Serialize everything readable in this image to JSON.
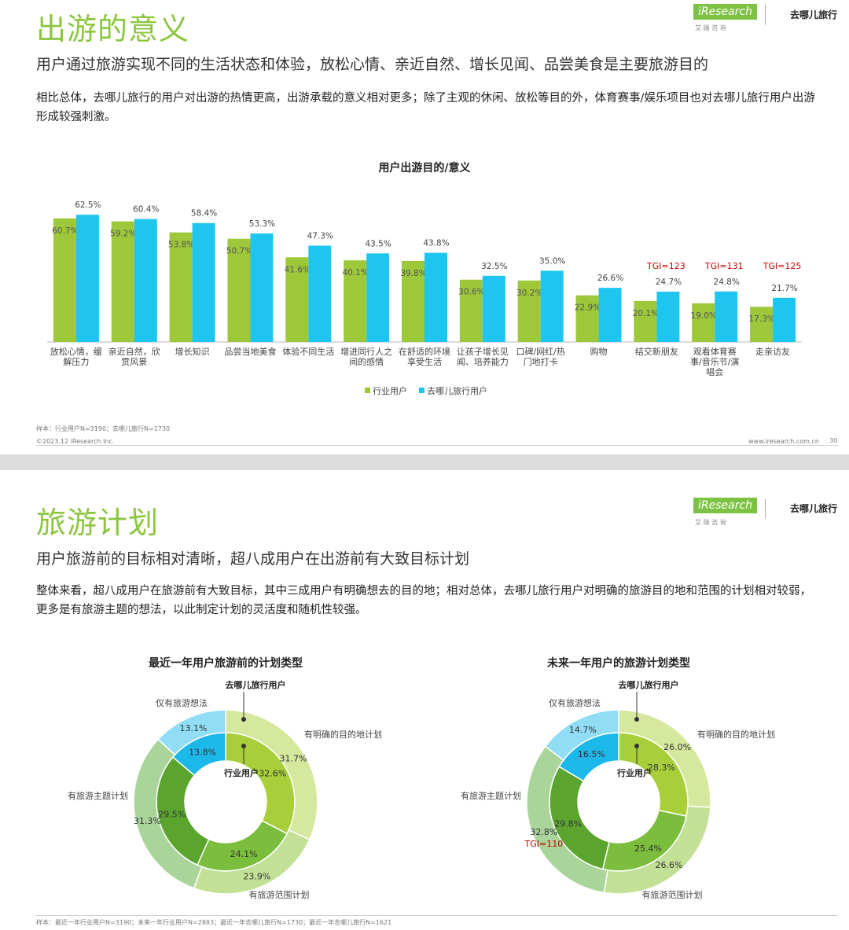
{
  "brand": {
    "iresearch": "iResearch",
    "iresearch_cn": "艾 瑞 咨 询",
    "qunar": "去哪儿旅行"
  },
  "slides": [
    {
      "title": "出游的意义",
      "subtitle": "用户通过旅游实现不同的生活状态和体验，放松心情、亲近自然、增长见闻、品尝美食是主要旅游目的",
      "body": "相比总体，去哪儿旅行的用户对出游的热情更高，出游承载的意义相对更多；除了主观的休闲、放松等目的外，体育赛事/娱乐项目也对去哪儿旅行用户出游形成较强刺激。",
      "footnote": "样本：行业用户N=3190；去哪儿旅行N=1730",
      "copyright": "©2023.12 iResearch Inc.",
      "url": "www.iresearch.com.cn",
      "page": "30"
    },
    {
      "title": "旅游计划",
      "subtitle": "用户旅游前的目标相对清晰，超八成用户在出游前有大致目标计划",
      "body": "整体来看，超八成用户在旅游前有大致目标，其中三成用户有明确想去的目的地；相对总体，去哪儿旅行用户对明确的旅游目的地和范围的计划相对较弱，更多是有旅游主题的想法，以此制定计划的灵活度和随机性较强。",
      "footnote": "样本：最近一年行业用户N=3190；未来一年行业用户N=2883；最近一年去哪儿旅行N=1730；最近一年去哪儿旅行N=1621"
    }
  ],
  "chart_data": [
    {
      "type": "bar",
      "title": "用户出游目的/意义",
      "categories": [
        "放松心情，缓解压力",
        "亲近自然，欣赏风景",
        "增长知识",
        "品尝当地美食",
        "体验不同生活",
        "增进同行人之间的感情",
        "在舒适的环境享受生活",
        "让孩子增长见闻、培养能力",
        "口碑/网红/热门地打卡",
        "购物",
        "结交新朋友",
        "观看体育赛事/音乐节/演唱会",
        "走亲访友"
      ],
      "series": [
        {
          "name": "行业用户",
          "color": "#9dc83a",
          "values": [
            60.7,
            59.2,
            53.8,
            50.7,
            41.6,
            40.1,
            39.8,
            30.6,
            30.2,
            22.9,
            20.1,
            19.0,
            17.3
          ],
          "value_labels": [
            "60.7%",
            "59.2%",
            "53.8%",
            "50.7%",
            "41.6%",
            "40.1%",
            "39.8%",
            "30.6%",
            "30.2%",
            "22.9%",
            "20.1%",
            "19.0%",
            "17.3%"
          ]
        },
        {
          "name": "去哪儿旅行用户",
          "color": "#1ec6ef",
          "values": [
            62.5,
            60.4,
            58.4,
            53.3,
            47.3,
            43.5,
            43.8,
            32.5,
            35.0,
            26.6,
            24.7,
            24.8,
            21.7
          ],
          "value_labels": [
            "62.5%",
            "60.4%",
            "58.4%",
            "53.3%",
            "47.3%",
            "43.5%",
            "43.8%",
            "32.5%",
            "35.0%",
            "26.6%",
            "24.7%",
            "24.8%",
            "21.7%"
          ],
          "tgi_labels": [
            null,
            null,
            null,
            null,
            null,
            null,
            null,
            null,
            null,
            null,
            "TGI=123",
            "TGI=131",
            "TGI=125"
          ]
        }
      ],
      "ylim": [
        0,
        70
      ],
      "legend": "bottom"
    },
    {
      "type": "donut",
      "title": "最近一年用户旅游前的计划类型",
      "categories": [
        "有明确的目的地计划",
        "有旅游范围计划",
        "有旅游主题计划",
        "仅有旅游想法"
      ],
      "series": [
        {
          "name": "行业用户",
          "colors": [
            "#a8cf3a",
            "#7bbd3c",
            "#5ba52f",
            "#1db8ea"
          ],
          "values": [
            32.6,
            24.1,
            29.5,
            13.8
          ],
          "value_labels": [
            "32.6%",
            "24.1%",
            "29.5%",
            "13.8%"
          ]
        },
        {
          "name": "去哪儿旅行用户",
          "colors": [
            "#d5e89e",
            "#c3e196",
            "#a9d49a",
            "#90ddf5"
          ],
          "values": [
            31.7,
            23.9,
            31.3,
            13.1
          ],
          "value_labels": [
            "31.7%",
            "23.9%",
            "31.3%",
            "13.1%"
          ]
        }
      ]
    },
    {
      "type": "donut",
      "title": "未来一年用户的旅游计划类型",
      "categories": [
        "有明确的目的地计划",
        "有旅游范围计划",
        "有旅游主题计划",
        "仅有旅游想法"
      ],
      "series": [
        {
          "name": "行业用户",
          "colors": [
            "#a8cf3a",
            "#7bbd3c",
            "#5ba52f",
            "#1db8ea"
          ],
          "values": [
            28.3,
            25.4,
            29.8,
            16.5
          ],
          "value_labels": [
            "28.3%",
            "25.4%",
            "29.8%",
            "16.5%"
          ]
        },
        {
          "name": "去哪儿旅行用户",
          "colors": [
            "#d5e89e",
            "#c3e196",
            "#a9d49a",
            "#90ddf5"
          ],
          "values": [
            26.0,
            26.6,
            32.8,
            14.7
          ],
          "value_labels": [
            "26.0%",
            "26.6%",
            "32.8%",
            "14.7%"
          ],
          "tgi_labels": [
            null,
            null,
            "TGI=110",
            null
          ]
        }
      ]
    }
  ]
}
